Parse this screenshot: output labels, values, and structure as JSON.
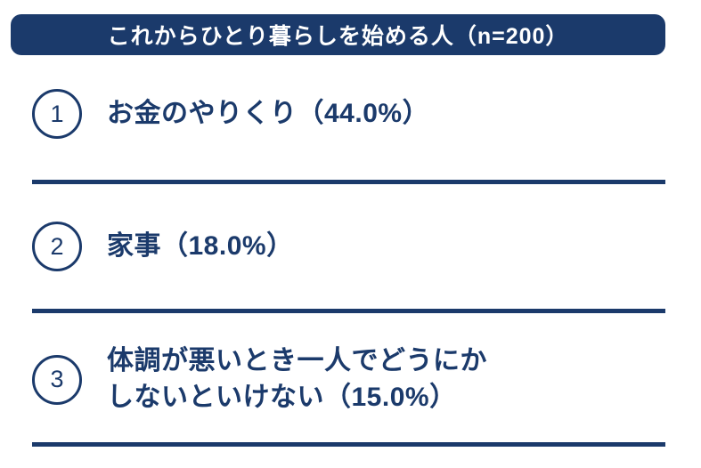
{
  "accent_color": "#1b3a6b",
  "header": {
    "title": "これからひとり暮らしを始める人（n=200）"
  },
  "items": [
    {
      "rank": "1",
      "lines": [
        "お金のやりくり（44.0%）"
      ]
    },
    {
      "rank": "2",
      "lines": [
        "家事（18.0%）"
      ]
    },
    {
      "rank": "3",
      "lines": [
        "体調が悪いとき一人でどうにか",
        "しないといけない（15.0%）"
      ]
    }
  ],
  "chart_data": {
    "type": "table",
    "title": "これからひとり暮らしを始める人（n=200）",
    "sample_size": 200,
    "categories": [
      "お金のやりくり",
      "家事",
      "体調が悪いとき一人でどうにかしないといけない"
    ],
    "values": [
      44.0,
      18.0,
      15.0
    ],
    "value_unit": "%",
    "ranks": [
      1,
      2,
      3
    ],
    "legend_position": "none",
    "grid": false
  }
}
